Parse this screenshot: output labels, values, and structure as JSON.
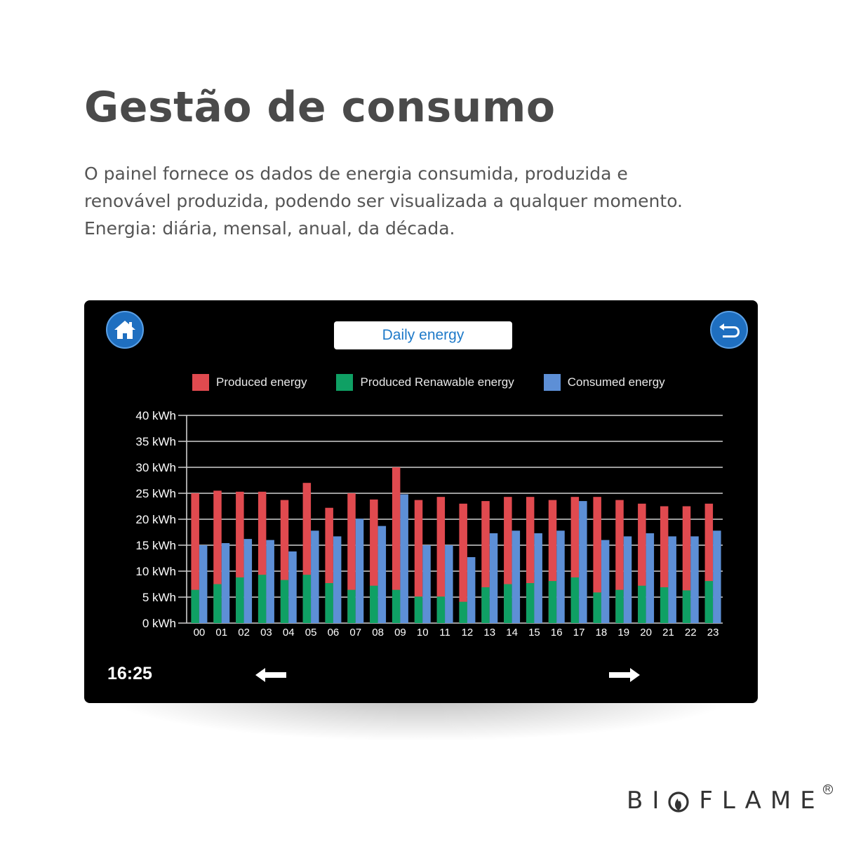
{
  "header": {
    "title": "Gestão de consumo",
    "description_lines": [
      "O painel fornece os dados de energia consumida, produzida e",
      "renovável produzida, podendo ser visualizada a qualquer momento.",
      "Energia: diária, mensal, anual, da década."
    ]
  },
  "panel": {
    "title": "Daily energy",
    "home_icon": "home-icon",
    "back_icon": "return-arrow-icon",
    "clock": "16:25",
    "prev_icon": "arrow-left-icon",
    "next_icon": "arrow-right-icon",
    "colors": {
      "produced": "#e04a4f",
      "renewable": "#0fa064",
      "consumed": "#5d8fd6",
      "button": "#1f6fc0",
      "title_text": "#1f7ac9"
    },
    "legend": [
      {
        "label": "Produced energy",
        "color": "#e04a4f"
      },
      {
        "label": "Produced Renawable energy",
        "color": "#0fa064"
      },
      {
        "label": "Consumed energy",
        "color": "#5d8fd6"
      }
    ]
  },
  "brand": {
    "name_left": "BI",
    "name_right": "FLAME",
    "registered": "R"
  },
  "chart_data": {
    "type": "bar",
    "categories": [
      "00",
      "01",
      "02",
      "03",
      "04",
      "05",
      "06",
      "07",
      "08",
      "09",
      "10",
      "11",
      "12",
      "13",
      "14",
      "15",
      "16",
      "17",
      "18",
      "19",
      "20",
      "21",
      "22",
      "23"
    ],
    "y_tick_labels": [
      "0 kWh",
      "5 kWh",
      "10 kWh",
      "15 kWh",
      "20 kWh",
      "25 kWh",
      "30 kWh",
      "35 kWh",
      "40 kWh"
    ],
    "y_ticks": [
      0,
      5,
      10,
      15,
      20,
      25,
      30,
      35,
      40
    ],
    "ylim": [
      0,
      40
    ],
    "grid": true,
    "legend_position": "top",
    "series": [
      {
        "name": "Produced energy",
        "values": [
          25,
          25.5,
          25.3,
          25.3,
          23.7,
          27,
          22.2,
          25,
          23.8,
          30,
          23.7,
          24.3,
          23,
          23.5,
          24.3,
          24.3,
          23.7,
          24.3,
          24.3,
          23.7,
          23,
          22.5,
          22.5,
          23
        ]
      },
      {
        "name": "Produced Renawable energy",
        "values": [
          6.4,
          7.5,
          8.8,
          9.3,
          8.3,
          9.3,
          7.7,
          6.4,
          7.2,
          6.4,
          5.1,
          5.1,
          4.1,
          6.9,
          7.5,
          7.7,
          8.1,
          8.8,
          5.9,
          6.4,
          7.2,
          6.9,
          6.3,
          8.1
        ]
      },
      {
        "name": "Consumed energy",
        "values": [
          15,
          15.4,
          16.2,
          16,
          13.8,
          17.8,
          16.7,
          20.1,
          18.7,
          24.8,
          15,
          15,
          12.7,
          17.3,
          17.8,
          17.3,
          17.8,
          23.5,
          16,
          16.7,
          17.3,
          16.7,
          16.7,
          17.8
        ]
      }
    ]
  }
}
